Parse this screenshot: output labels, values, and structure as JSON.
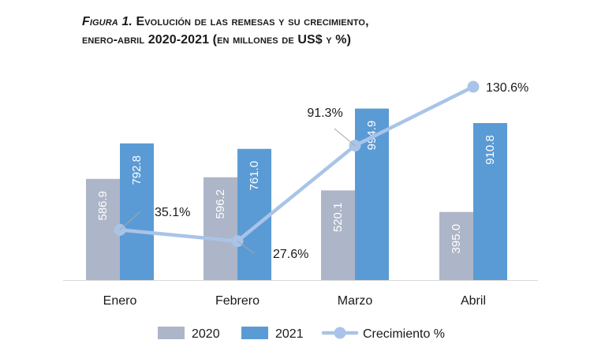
{
  "title": {
    "prefix": "Figura 1.",
    "line1": "Evolución de las remesas y su crecimiento,",
    "line2": "enero-abril 2020-2021 (en millones de US$ y %)"
  },
  "chart_data": {
    "type": "bar",
    "categories": [
      "Enero",
      "Febrero",
      "Marzo",
      "Abril"
    ],
    "series": [
      {
        "name": "2020",
        "type": "bar",
        "color": "#adb5c8",
        "values": [
          586.9,
          596.2,
          520.1,
          395.0
        ],
        "labels": [
          "586.9",
          "596.2",
          "520.1",
          "395.0"
        ]
      },
      {
        "name": "2021",
        "type": "bar",
        "color": "#5b9bd5",
        "values": [
          792.8,
          761.0,
          994.9,
          910.8
        ],
        "labels": [
          "792.8",
          "761.0",
          "994.9",
          "910.8"
        ]
      },
      {
        "name": "Crecimiento %",
        "type": "line",
        "color": "#a9c4e8",
        "values": [
          35.1,
          27.6,
          91.3,
          130.6
        ],
        "labels": [
          "35.1%",
          "27.6%",
          "91.3%",
          "130.6%"
        ]
      }
    ],
    "legend_position": "bottom",
    "grid": false
  }
}
